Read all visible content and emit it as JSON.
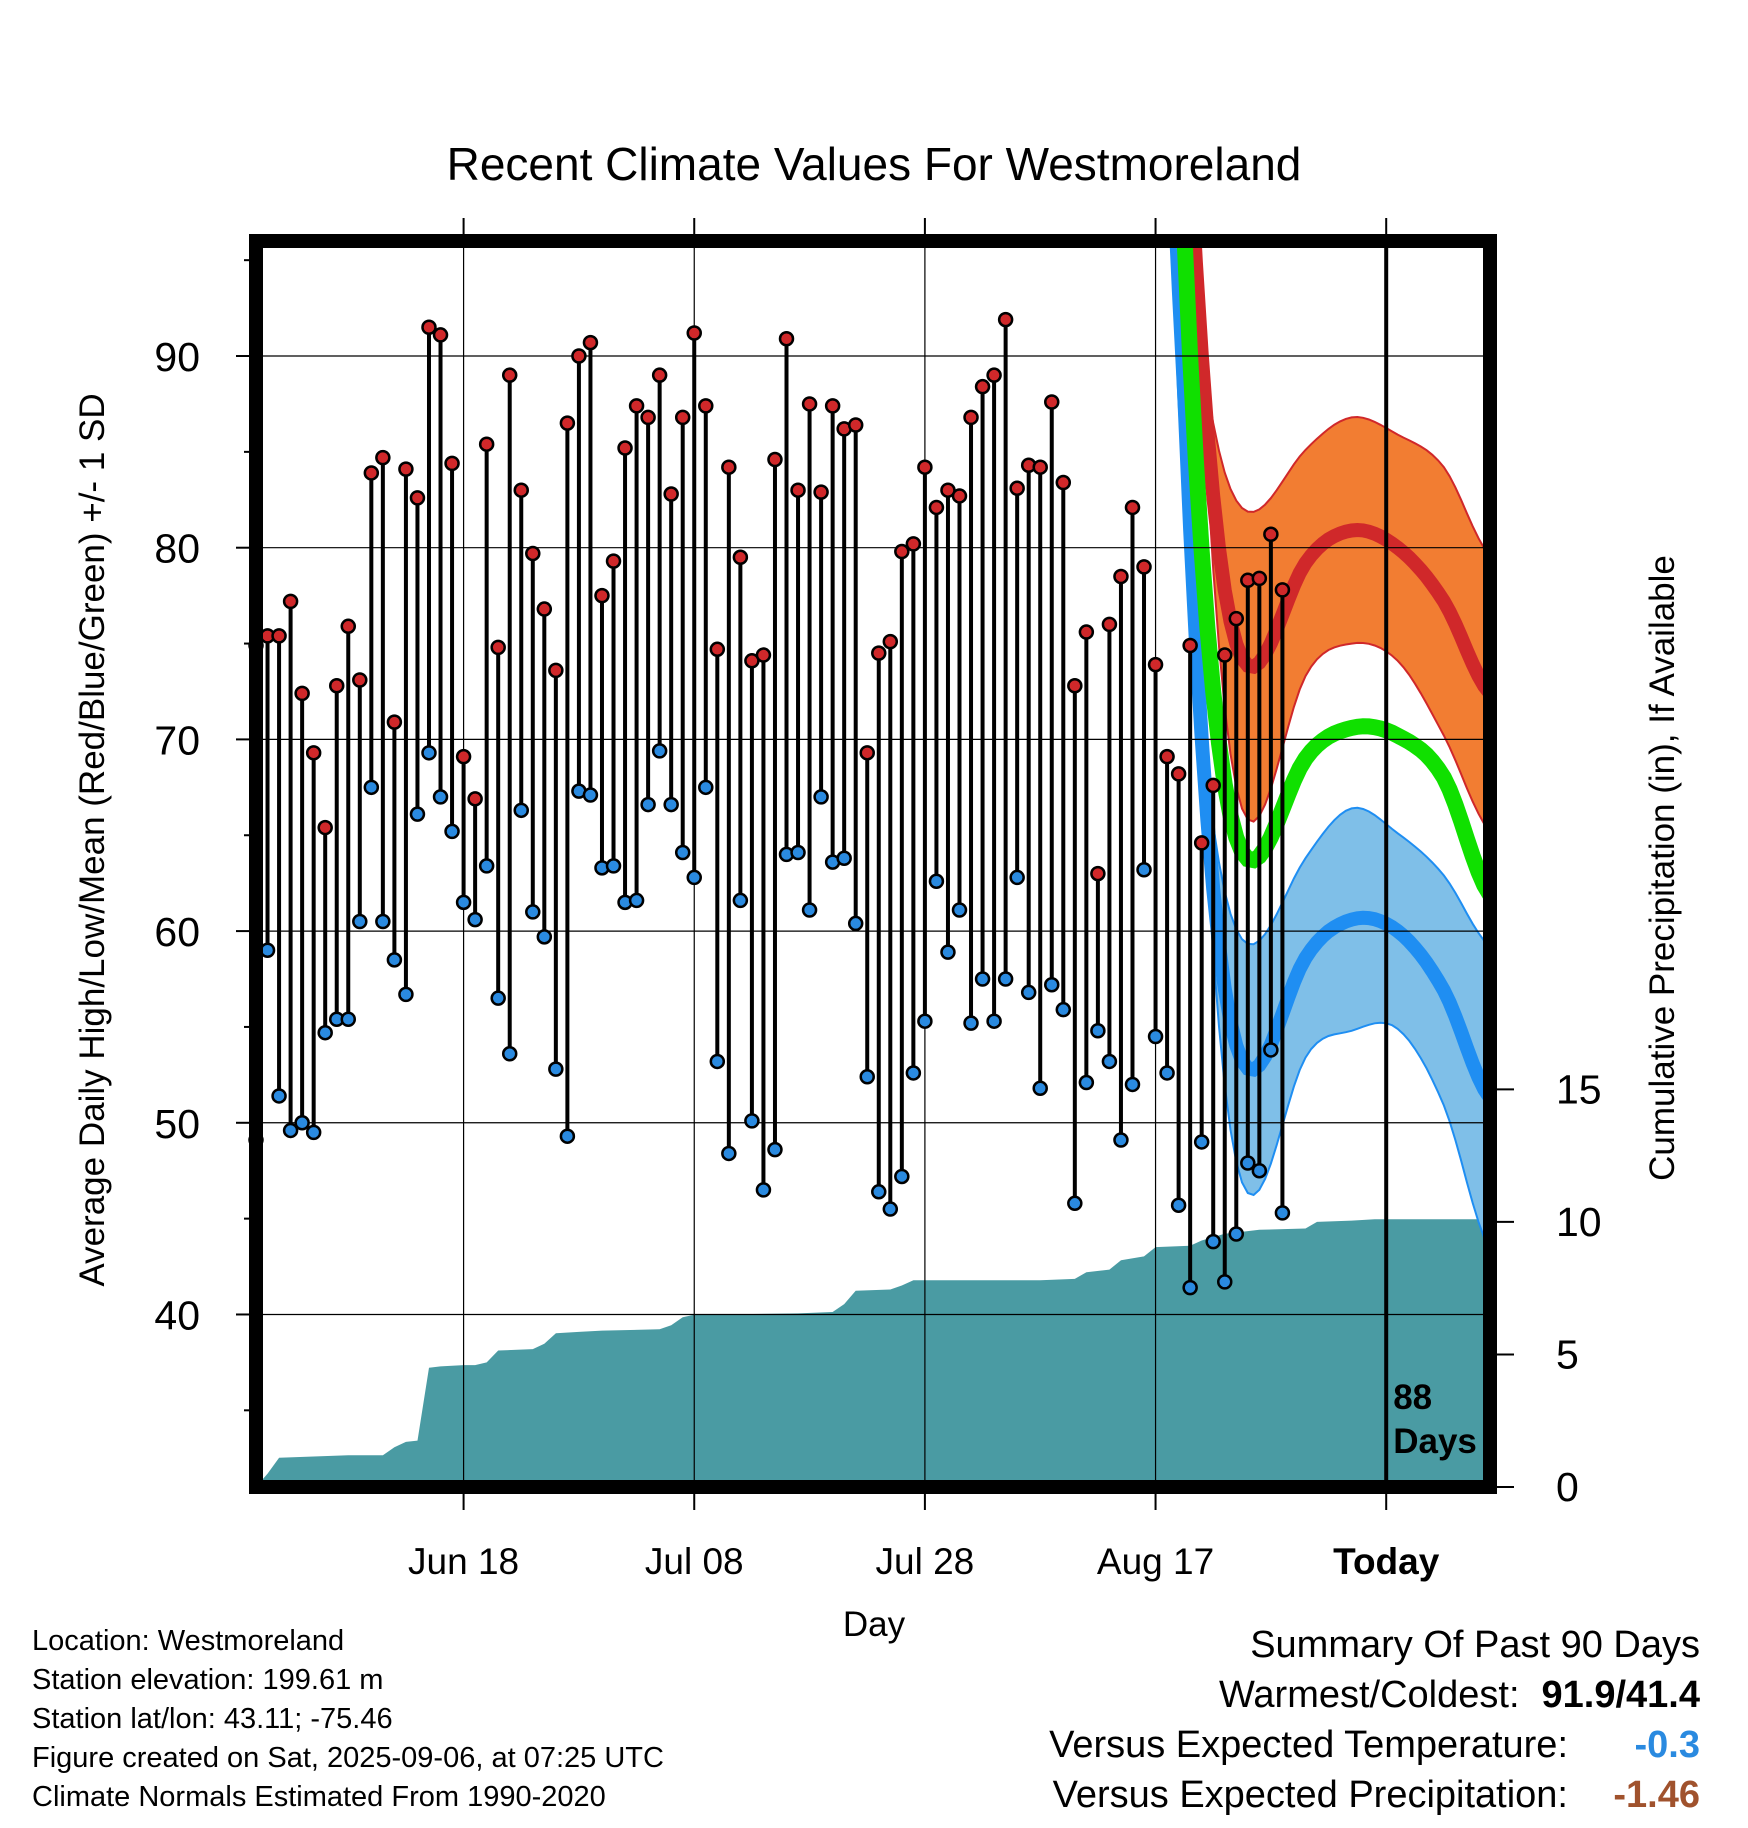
{
  "chart_data": {
    "type": "line",
    "title": "Recent Climate Values For Westmoreland",
    "xlabel": "Day",
    "ylabel": "Average Daily High/Low/Mean (Red/Blue/Green) +/- 1 SD",
    "y2label": "Cumulative Precipitation (in), If Available",
    "x_ticks": [
      "Jun 18",
      "Jul 08",
      "Jul 28",
      "Aug 17",
      "Today"
    ],
    "y_ticks": [
      40,
      50,
      60,
      70,
      80,
      90
    ],
    "y2_ticks": [
      0,
      5,
      10,
      15
    ],
    "ylim": [
      31,
      96
    ],
    "y2lim": [
      0,
      47
    ],
    "days_marker_label": "88\nDays",
    "grid": true,
    "colors": {
      "high": "#d0282a",
      "high_band": "#f27d32",
      "low": "#1f8ef2",
      "low_band": "#7fbfe8",
      "mean": "#10e000",
      "precip": "#4a9ba3",
      "high_dot": "#d0282a",
      "low_dot": "#2a8ae0"
    },
    "normals": {
      "x_start": -11,
      "x_end": 9,
      "high_mean": [
        74.0,
        79.2,
        80.9,
        80.0,
        77.2,
        72.4
      ],
      "high_sd": [
        8.0,
        5.9,
        5.9,
        5.9,
        7.0,
        7.2
      ],
      "low_mean": [
        53.0,
        58.6,
        60.6,
        60.0,
        56.9,
        51.3
      ],
      "low_sd": [
        6.5,
        5.2,
        5.8,
        5.1,
        6.0,
        7.9
      ],
      "mean_mean": [
        63.9,
        69.0,
        70.6,
        70.2,
        68.0,
        61.9
      ]
    },
    "series": [
      {
        "name": "Daily High",
        "values": [
          74.9,
          75.4,
          75.4,
          77.2,
          72.4,
          69.3,
          65.4,
          72.8,
          75.9,
          73.1,
          83.9,
          84.7,
          70.9,
          84.1,
          82.6,
          91.5,
          91.1,
          84.4,
          69.1,
          66.9,
          85.4,
          74.8,
          89.0,
          83.0,
          79.7,
          76.8,
          73.6,
          86.5,
          90.0,
          90.7,
          77.5,
          79.3,
          85.2,
          87.4,
          86.8,
          89.0,
          82.8,
          86.8,
          91.2,
          87.4,
          74.7,
          84.2,
          79.5,
          74.1,
          74.4,
          84.6,
          90.9,
          83.0,
          87.5,
          82.9,
          87.4,
          86.2,
          86.4,
          69.3,
          74.5,
          75.1,
          79.8,
          80.2,
          84.2,
          82.1,
          83.0,
          82.7,
          86.8,
          88.4,
          89.0,
          91.9,
          83.1,
          84.3,
          84.2,
          87.6,
          83.4,
          72.8,
          75.6,
          63.0,
          76.0,
          78.5,
          82.1,
          79.0,
          73.9,
          69.1,
          68.2,
          74.9,
          64.6,
          67.6,
          74.4,
          76.3,
          78.3,
          78.4,
          80.7,
          77.8
        ]
      },
      {
        "name": "Daily Low",
        "values": [
          49.1,
          59.0,
          51.4,
          49.6,
          50.0,
          49.5,
          54.7,
          55.4,
          55.4,
          60.5,
          67.5,
          60.5,
          58.5,
          56.7,
          66.1,
          69.3,
          67.0,
          65.2,
          61.5,
          60.6,
          63.4,
          56.5,
          53.6,
          66.3,
          61.0,
          59.7,
          52.8,
          49.3,
          67.3,
          67.1,
          63.3,
          63.4,
          61.5,
          61.6,
          66.6,
          69.4,
          66.6,
          64.1,
          62.8,
          67.5,
          53.2,
          48.4,
          61.6,
          50.1,
          46.5,
          48.6,
          64.0,
          64.1,
          61.1,
          67.0,
          63.6,
          63.8,
          60.4,
          52.4,
          46.4,
          45.5,
          47.2,
          52.6,
          55.3,
          62.6,
          58.9,
          61.1,
          55.2,
          57.5,
          55.3,
          57.5,
          62.8,
          56.8,
          51.8,
          57.2,
          55.9,
          45.8,
          52.1,
          54.8,
          53.2,
          49.1,
          52.0,
          63.2,
          54.5,
          52.6,
          45.7,
          41.4,
          49.0,
          43.8,
          41.7,
          44.2,
          47.9,
          47.5,
          53.8,
          45.3
        ]
      },
      {
        "name": "Cumulative Precipitation",
        "points": [
          [
            -98,
            0
          ],
          [
            -97,
            0.5
          ],
          [
            -96,
            1.1
          ],
          [
            -93,
            1.15
          ],
          [
            -90,
            1.2
          ],
          [
            -87,
            1.2
          ],
          [
            -86,
            1.5
          ],
          [
            -85,
            1.7
          ],
          [
            -84,
            1.75
          ],
          [
            -83,
            4.5
          ],
          [
            -82,
            4.55
          ],
          [
            -80,
            4.6
          ],
          [
            -79,
            4.6
          ],
          [
            -78,
            4.7
          ],
          [
            -77,
            5.15
          ],
          [
            -74,
            5.2
          ],
          [
            -73,
            5.4
          ],
          [
            -72,
            5.8
          ],
          [
            -70,
            5.85
          ],
          [
            -68,
            5.9
          ],
          [
            -63,
            5.95
          ],
          [
            -62,
            6.1
          ],
          [
            -61,
            6.4
          ],
          [
            -60,
            6.5
          ],
          [
            -51,
            6.55
          ],
          [
            -48,
            6.6
          ],
          [
            -47,
            6.9
          ],
          [
            -46,
            7.4
          ],
          [
            -43,
            7.45
          ],
          [
            -42,
            7.6
          ],
          [
            -41,
            7.8
          ],
          [
            -30,
            7.8
          ],
          [
            -27,
            7.85
          ],
          [
            -26,
            8.1
          ],
          [
            -24,
            8.2
          ],
          [
            -23,
            8.55
          ],
          [
            -21,
            8.7
          ],
          [
            -20,
            9.05
          ],
          [
            -17,
            9.1
          ],
          [
            -16,
            9.3
          ],
          [
            -14,
            9.55
          ],
          [
            -13,
            9.6
          ],
          [
            -11,
            9.7
          ],
          [
            -7,
            9.75
          ],
          [
            -6,
            10.0
          ],
          [
            -3,
            10.05
          ],
          [
            -1,
            10.1
          ],
          [
            9,
            10.1
          ]
        ]
      }
    ]
  },
  "info": {
    "location": "Location: Westmoreland",
    "elevation": "Station elevation: 199.61 m",
    "latlon": "Station lat/lon: 43.11; -75.46",
    "created": "Figure created on Sat, 2025-09-06, at 07:25 UTC",
    "normals": "Climate Normals Estimated From 1990-2020"
  },
  "summary": {
    "title": "Summary Of Past 90 Days",
    "warm_cold_label": "Warmest/Coldest:",
    "warm_cold_value": "91.9/41.4",
    "temp_label": "Versus Expected Temperature:",
    "temp_value": "-0.3",
    "temp_color": "#2a8ae0",
    "precip_label": "Versus Expected Precipitation:",
    "precip_value": "-1.46",
    "precip_color": "#a0522d"
  }
}
